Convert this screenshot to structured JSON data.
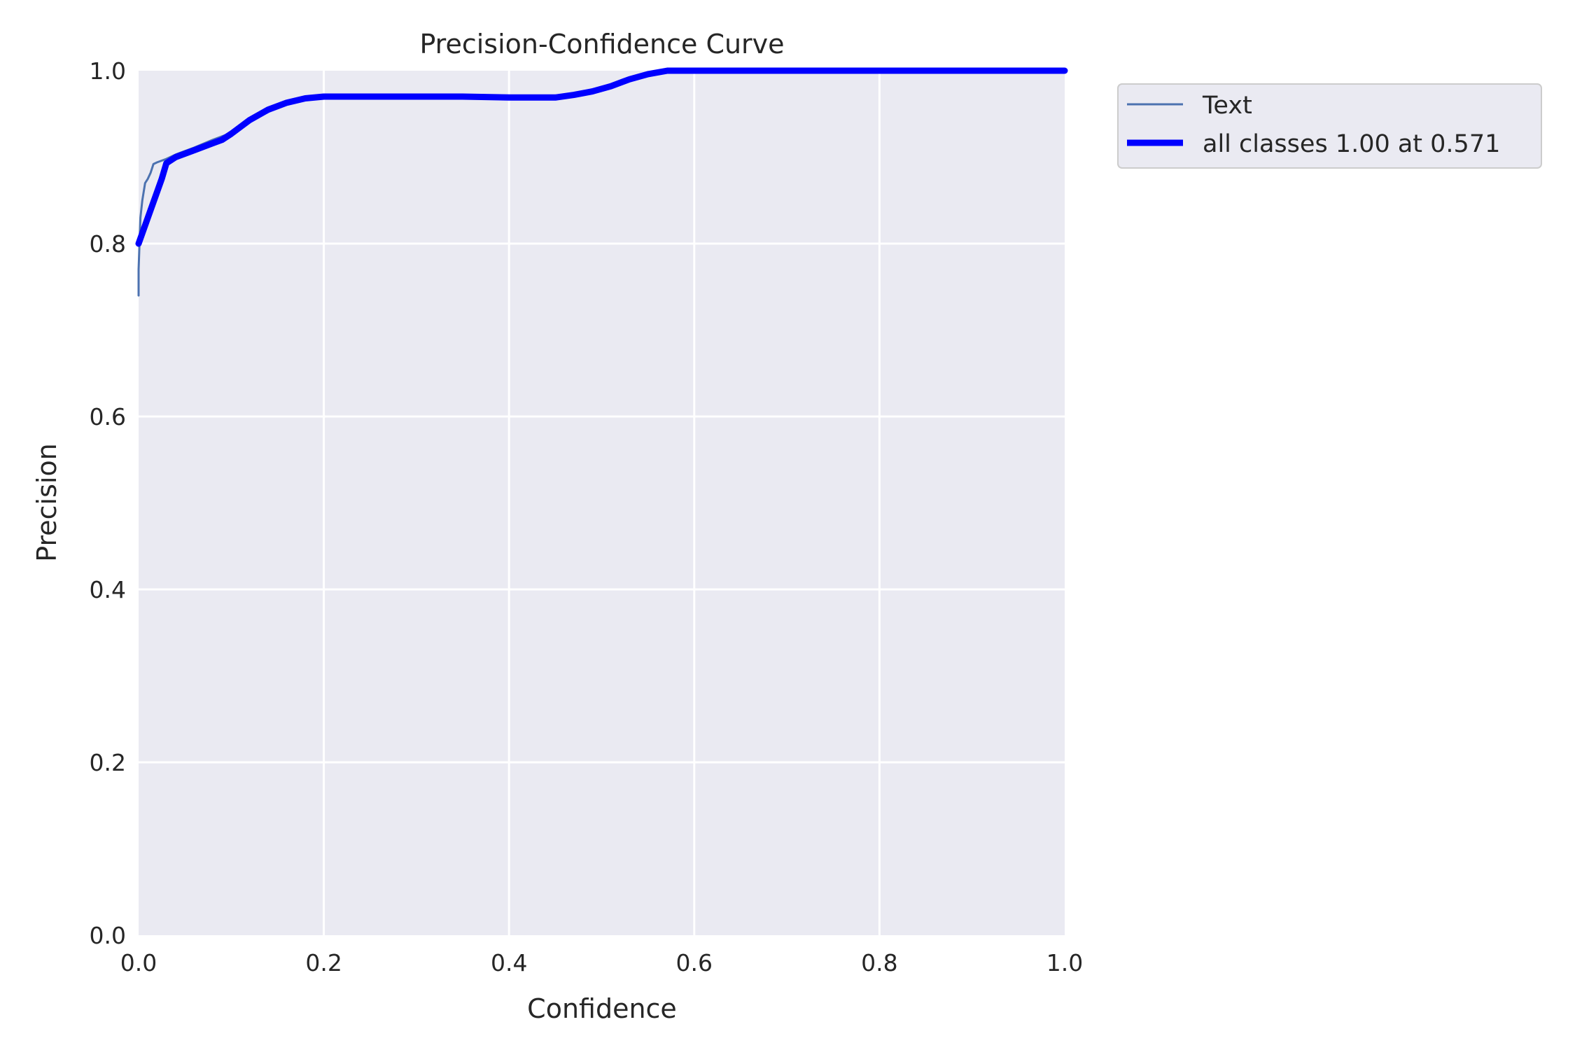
{
  "chart_data": {
    "type": "line",
    "title": "Precision-Confidence Curve",
    "xlabel": "Confidence",
    "ylabel": "Precision",
    "xlim": [
      0.0,
      1.0
    ],
    "ylim": [
      0.0,
      1.0
    ],
    "grid": true,
    "legend_placement": "outside-top-right",
    "x_ticks": [
      "0.0",
      "0.2",
      "0.4",
      "0.6",
      "0.8",
      "1.0"
    ],
    "y_ticks": [
      "0.0",
      "0.2",
      "0.4",
      "0.6",
      "0.8",
      "1.0"
    ],
    "series": [
      {
        "name": "Text",
        "color": "#4c72b0",
        "style": "thin",
        "x": [
          0.0,
          0.0,
          0.002,
          0.004,
          0.007,
          0.01,
          0.013,
          0.016,
          0.02,
          0.03,
          0.04,
          0.06,
          0.08,
          0.1,
          0.11,
          0.12,
          0.14,
          0.16,
          0.18,
          0.2,
          0.25,
          0.3,
          0.35,
          0.4,
          0.45,
          0.47,
          0.49,
          0.51,
          0.53,
          0.55,
          0.57,
          0.6,
          0.7,
          0.8,
          0.9,
          1.0
        ],
        "y": [
          0.74,
          0.77,
          0.83,
          0.85,
          0.87,
          0.875,
          0.882,
          0.892,
          0.894,
          0.898,
          0.903,
          0.911,
          0.92,
          0.928,
          0.933,
          0.942,
          0.955,
          0.963,
          0.968,
          0.97,
          0.97,
          0.97,
          0.97,
          0.969,
          0.969,
          0.972,
          0.976,
          0.982,
          0.99,
          0.996,
          1.0,
          1.0,
          1.0,
          1.0,
          1.0,
          1.0
        ]
      },
      {
        "name": "all classes 1.00 at 0.571",
        "color": "#0000ff",
        "style": "thick",
        "x": [
          0.0,
          0.01,
          0.02,
          0.025,
          0.03,
          0.04,
          0.06,
          0.08,
          0.09,
          0.1,
          0.11,
          0.12,
          0.14,
          0.16,
          0.18,
          0.2,
          0.25,
          0.3,
          0.35,
          0.4,
          0.45,
          0.47,
          0.49,
          0.51,
          0.53,
          0.55,
          0.571,
          0.6,
          0.7,
          0.8,
          0.9,
          1.0
        ],
        "y": [
          0.8,
          0.83,
          0.86,
          0.875,
          0.893,
          0.9,
          0.908,
          0.916,
          0.92,
          0.927,
          0.935,
          0.943,
          0.955,
          0.963,
          0.968,
          0.97,
          0.97,
          0.97,
          0.97,
          0.969,
          0.969,
          0.972,
          0.976,
          0.982,
          0.99,
          0.996,
          1.0,
          1.0,
          1.0,
          1.0,
          1.0,
          1.0
        ]
      }
    ]
  }
}
